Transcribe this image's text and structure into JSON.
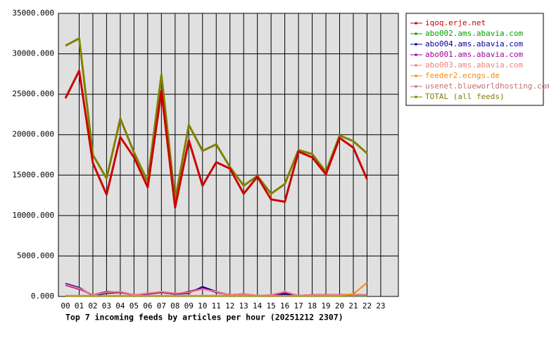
{
  "chart_data": {
    "type": "line",
    "title": "Top 7 incoming feeds by articles per hour (20251212 2307)",
    "categories": [
      "00",
      "01",
      "02",
      "03",
      "04",
      "05",
      "06",
      "07",
      "08",
      "09",
      "10",
      "11",
      "12",
      "13",
      "14",
      "15",
      "16",
      "17",
      "18",
      "19",
      "20",
      "21",
      "22",
      "23"
    ],
    "ylim": [
      0,
      35000
    ],
    "yticks": [
      {
        "value": 0,
        "label": "0.000"
      },
      {
        "value": 5000,
        "label": "5000.000"
      },
      {
        "value": 10000,
        "label": "10000.000"
      },
      {
        "value": 15000,
        "label": "15000.000"
      },
      {
        "value": 20000,
        "label": "20000.000"
      },
      {
        "value": 25000,
        "label": "25000.000"
      },
      {
        "value": 30000,
        "label": "30000.000"
      },
      {
        "value": 35000,
        "label": "35000.000"
      }
    ],
    "grid": true,
    "legend": "outside-right",
    "series": [
      {
        "name": "abo002.ams.abavia.com",
        "color": "#00a000",
        "values": [
          50,
          50,
          50,
          50,
          50,
          50,
          50,
          50,
          50,
          50,
          50,
          50,
          50,
          50,
          50,
          50,
          50,
          50,
          50,
          50,
          50,
          50,
          50,
          null
        ]
      },
      {
        "name": "usenet.blueworldhosting.com",
        "color": "#c07070",
        "values": [
          100,
          100,
          100,
          100,
          100,
          100,
          100,
          100,
          100,
          100,
          100,
          100,
          100,
          100,
          100,
          100,
          100,
          100,
          100,
          100,
          100,
          100,
          100,
          null
        ]
      },
      {
        "name": "abo004.ams.abavia.com",
        "color": "#0000a0",
        "values": [
          1600,
          1100,
          100,
          400,
          500,
          200,
          300,
          500,
          300,
          400,
          1200,
          600,
          200,
          300,
          100,
          100,
          300,
          100,
          200,
          200,
          200,
          200,
          200,
          null
        ]
      },
      {
        "name": "abo001.ams.abavia.com",
        "color": "#a000a0",
        "values": [
          1400,
          900,
          200,
          600,
          500,
          200,
          300,
          500,
          300,
          600,
          1000,
          500,
          200,
          300,
          100,
          100,
          500,
          100,
          200,
          200,
          200,
          200,
          200,
          null
        ]
      },
      {
        "name": "abo003.ams.abavia.com",
        "color": "#f08080",
        "values": [
          1500,
          1000,
          200,
          500,
          600,
          200,
          400,
          600,
          400,
          500,
          900,
          600,
          200,
          300,
          100,
          200,
          600,
          100,
          200,
          200,
          200,
          200,
          200,
          null
        ]
      },
      {
        "name": "feeder2.ecngs.de",
        "color": "#ff8800",
        "values": [
          100,
          100,
          100,
          100,
          100,
          100,
          100,
          100,
          100,
          100,
          100,
          100,
          100,
          100,
          100,
          100,
          100,
          100,
          100,
          100,
          100,
          300,
          1700,
          null
        ]
      },
      {
        "name": "TOTAL (all feeds)",
        "color": "#808000",
        "values": [
          31000,
          31900,
          17500,
          14600,
          22000,
          17800,
          14200,
          27400,
          11900,
          21200,
          18000,
          18800,
          16000,
          13700,
          14900,
          12700,
          13900,
          18100,
          17600,
          15400,
          19900,
          19200,
          17700,
          null
        ]
      },
      {
        "name": "iqoq.erje.net",
        "color": "#cc0000",
        "values": [
          24500,
          27900,
          16500,
          12600,
          19700,
          17200,
          13500,
          25400,
          11000,
          19300,
          13700,
          16600,
          15800,
          12700,
          14800,
          12000,
          11700,
          17900,
          17200,
          15100,
          19600,
          18400,
          14500,
          null
        ]
      }
    ],
    "legend_order": [
      7,
      0,
      2,
      3,
      4,
      5,
      1,
      6
    ]
  }
}
